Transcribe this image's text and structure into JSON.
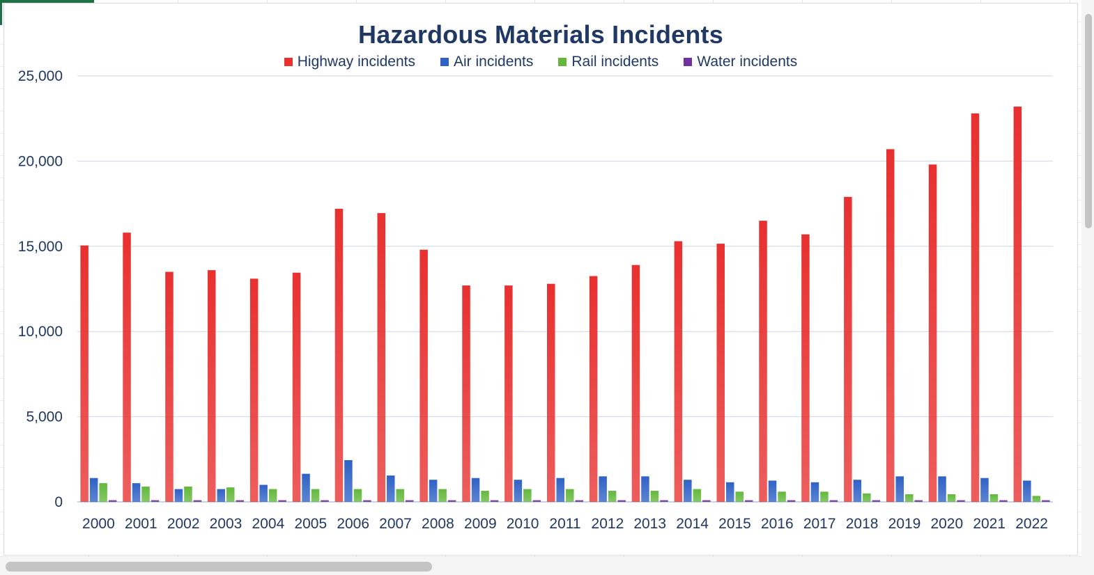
{
  "chart_data": {
    "type": "bar",
    "title": "Hazardous Materials Incidents",
    "xlabel": "",
    "ylabel": "",
    "ylim": [
      0,
      25000
    ],
    "yticks": [
      "0",
      "5,000",
      "10,000",
      "15,000",
      "20,000",
      "25,000"
    ],
    "ytick_values": [
      0,
      5000,
      10000,
      15000,
      20000,
      25000
    ],
    "grid": true,
    "legend_position": "top",
    "categories": [
      "2000",
      "2001",
      "2002",
      "2003",
      "2004",
      "2005",
      "2006",
      "2007",
      "2008",
      "2009",
      "2010",
      "2011",
      "2012",
      "2013",
      "2014",
      "2015",
      "2016",
      "2017",
      "2018",
      "2019",
      "2020",
      "2021",
      "2022"
    ],
    "series": [
      {
        "name": "Highway incidents",
        "color": "#e8302f",
        "values": [
          15050,
          15800,
          13500,
          13600,
          13100,
          13450,
          17200,
          16950,
          14800,
          12700,
          12700,
          12800,
          13250,
          13900,
          15300,
          15150,
          16500,
          15700,
          17900,
          20700,
          19800,
          22800,
          23200
        ]
      },
      {
        "name": "Air incidents",
        "color": "#2f62c6",
        "values": [
          1400,
          1100,
          750,
          750,
          1000,
          1650,
          2450,
          1550,
          1300,
          1400,
          1300,
          1400,
          1500,
          1500,
          1300,
          1150,
          1250,
          1150,
          1300,
          1500,
          1500,
          1400,
          1250
        ]
      },
      {
        "name": "Rail incidents",
        "color": "#63b83c",
        "values": [
          1100,
          900,
          900,
          850,
          750,
          750,
          750,
          750,
          750,
          650,
          750,
          750,
          650,
          650,
          750,
          600,
          600,
          600,
          500,
          450,
          450,
          450,
          350
        ]
      },
      {
        "name": "Water incidents",
        "color": "#7030a0",
        "values": [
          100,
          100,
          100,
          100,
          100,
          100,
          100,
          100,
          100,
          100,
          100,
          100,
          100,
          100,
          100,
          100,
          100,
          100,
          100,
          100,
          100,
          100,
          100
        ]
      }
    ]
  }
}
